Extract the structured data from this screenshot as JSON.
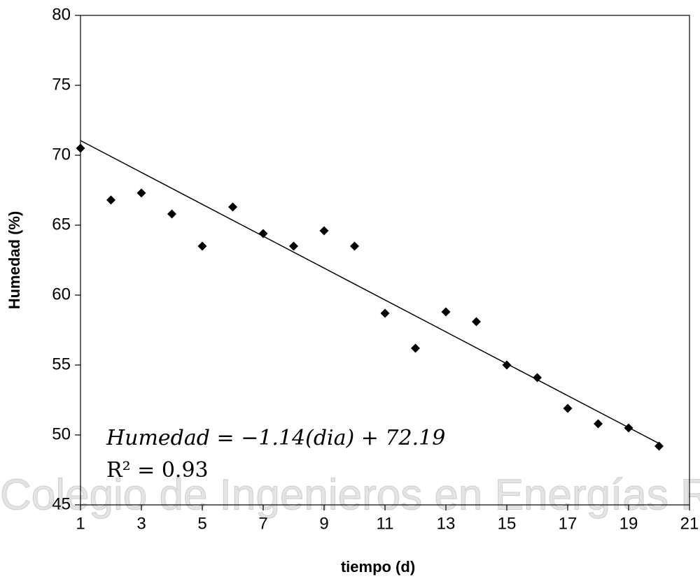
{
  "chart_data": {
    "type": "scatter",
    "x_label": "tiempo (d)",
    "y_label": "Humedad (%)",
    "equation": "Humedad = −1.14(dia) + 72.19",
    "r2_label": "R² = 0.93",
    "watermark": "Colegio de Ingenieros en Energías Ren",
    "x": [
      1,
      2,
      3,
      4,
      5,
      6,
      7,
      8,
      9,
      10,
      11,
      12,
      13,
      14,
      15,
      16,
      17,
      18,
      19,
      20
    ],
    "values": [
      70.5,
      66.8,
      67.3,
      65.8,
      63.5,
      66.3,
      64.4,
      63.5,
      64.6,
      63.5,
      58.7,
      56.2,
      58.8,
      58.1,
      55.0,
      54.1,
      51.9,
      50.8,
      50.5,
      49.2
    ],
    "color": "#000000",
    "trendline": {
      "slope": -1.14,
      "intercept": 72.19,
      "color": "#000000"
    },
    "xlim": [
      1,
      21
    ],
    "ylim": [
      45,
      80
    ],
    "xticks": [
      1,
      3,
      5,
      7,
      9,
      11,
      13,
      15,
      17,
      19,
      21
    ],
    "yticks": [
      45,
      50,
      55,
      60,
      65,
      70,
      75,
      80
    ],
    "grid": false
  }
}
